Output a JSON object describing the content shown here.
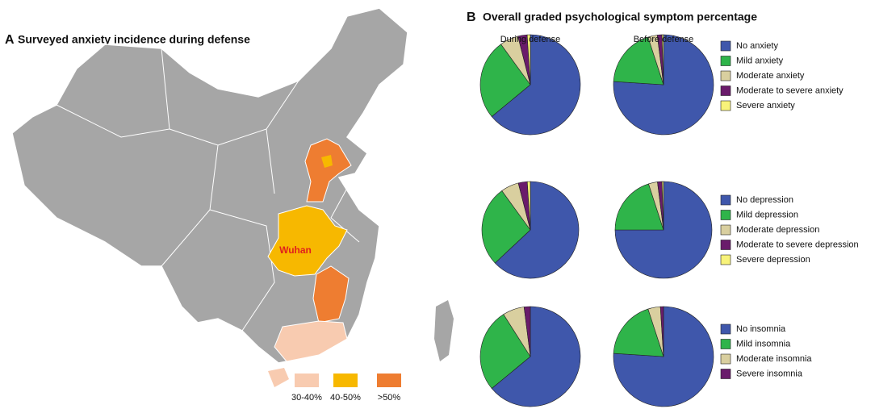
{
  "panel_a": {
    "label": "A",
    "title": "Surveyed anxiety incidence during defense",
    "city": "Wuhan",
    "legend": [
      {
        "label": "30-40%",
        "color": "#f8cbb0"
      },
      {
        "label": "40-50%",
        "color": "#f7b800"
      },
      {
        "label": ">50%",
        "color": "#ee7d31"
      }
    ]
  },
  "panel_b": {
    "label": "B",
    "title": "Overall graded psychological symptom percentage"
  },
  "chart_data": [
    {
      "type": "pie",
      "categories": [
        "No anxiety",
        "Mild anxiety",
        "Moderate  anxiety",
        "Moderate to severe  anxiety",
        " Severe anxiety"
      ],
      "colors": [
        "#3f57ab",
        "#2fb44a",
        "#d9cf9f",
        "#6a1b6b",
        "#f8f37a"
      ],
      "series": [
        {
          "name": "During defense",
          "values": [
            64,
            26,
            6,
            3,
            1
          ]
        },
        {
          "name": "Before defense",
          "values": [
            76,
            19,
            3,
            1.5,
            0.5
          ]
        }
      ]
    },
    {
      "type": "pie",
      "categories": [
        "No depression",
        "Mild depression",
        "Moderate  depression",
        "Moderate  to severe  depression",
        "Severe depression"
      ],
      "colors": [
        "#3f57ab",
        "#2fb44a",
        "#d9cf9f",
        "#6a1b6b",
        "#f8f37a"
      ],
      "series": [
        {
          "values": [
            63,
            27,
            6,
            3,
            1
          ]
        },
        {
          "values": [
            75,
            20,
            3,
            1.5,
            0.5
          ]
        }
      ]
    },
    {
      "type": "pie",
      "categories": [
        "No insomnia",
        "Mild insomnia",
        "Moderate insomnia",
        "Severe insomnia"
      ],
      "colors": [
        "#3f57ab",
        "#2fb44a",
        "#d9cf9f",
        "#6a1b6b"
      ],
      "series": [
        {
          "values": [
            64,
            27,
            7,
            2
          ]
        },
        {
          "values": [
            76,
            19,
            4,
            1
          ]
        }
      ]
    }
  ]
}
